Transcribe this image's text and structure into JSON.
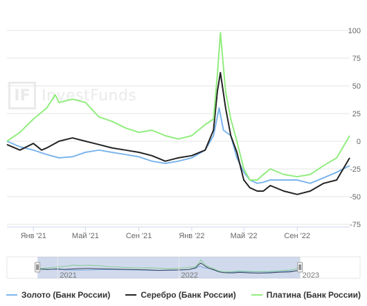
{
  "watermark": {
    "logo": "IF",
    "text": "InvestFunds"
  },
  "chart_data": {
    "type": "line",
    "title": "",
    "xlabel": "",
    "ylabel": "",
    "grid": true,
    "legend_position": "bottom",
    "ylim": [
      -75,
      100
    ],
    "yticks": [
      100,
      75,
      50,
      25,
      0,
      -25,
      -50,
      -75
    ],
    "ytick_labels": [
      "100",
      "75",
      "50",
      "25",
      "0",
      "-25",
      "-50",
      "-75"
    ],
    "x_range": [
      "2020-11-01",
      "2022-12-31"
    ],
    "xticks": [
      "2021-01-01",
      "2021-05-01",
      "2021-09-01",
      "2022-01-01",
      "2022-05-01",
      "2022-09-01"
    ],
    "xtick_labels": [
      "Янв '21",
      "Май '21",
      "Сен '21",
      "Янв '22",
      "Май '22",
      "Сен '22"
    ],
    "series": [
      {
        "name": "Золото (Банк России)",
        "color": "#7cb5ec",
        "x": [
          "2020-11-01",
          "2020-12-01",
          "2021-01-01",
          "2021-02-01",
          "2021-03-01",
          "2021-04-01",
          "2021-05-01",
          "2021-06-01",
          "2021-07-01",
          "2021-08-01",
          "2021-09-01",
          "2021-10-01",
          "2021-11-01",
          "2021-12-01",
          "2022-01-01",
          "2022-02-01",
          "2022-02-20",
          "2022-03-05",
          "2022-03-15",
          "2022-04-01",
          "2022-04-15",
          "2022-05-01",
          "2022-05-15",
          "2022-06-01",
          "2022-06-15",
          "2022-07-01",
          "2022-08-01",
          "2022-09-01",
          "2022-10-01",
          "2022-11-01",
          "2022-12-01",
          "2022-12-31"
        ],
        "y": [
          0,
          -5,
          -8,
          -12,
          -15,
          -14,
          -10,
          -8,
          -10,
          -12,
          -14,
          -18,
          -20,
          -18,
          -15,
          -8,
          5,
          30,
          10,
          5,
          -15,
          -28,
          -35,
          -38,
          -37,
          -35,
          -35,
          -35,
          -38,
          -33,
          -28,
          -22
        ]
      },
      {
        "name": "Серебро (Банк России)",
        "color": "#222222",
        "x": [
          "2020-11-01",
          "2020-12-01",
          "2021-01-01",
          "2021-01-20",
          "2021-02-01",
          "2021-03-01",
          "2021-04-01",
          "2021-05-01",
          "2021-06-01",
          "2021-07-01",
          "2021-08-01",
          "2021-09-01",
          "2021-10-01",
          "2021-11-01",
          "2021-12-01",
          "2022-01-01",
          "2022-02-01",
          "2022-02-20",
          "2022-03-01",
          "2022-03-08",
          "2022-03-20",
          "2022-04-01",
          "2022-04-15",
          "2022-05-01",
          "2022-05-15",
          "2022-06-01",
          "2022-06-15",
          "2022-07-01",
          "2022-08-01",
          "2022-09-01",
          "2022-10-01",
          "2022-11-01",
          "2022-12-01",
          "2022-12-31"
        ],
        "y": [
          -3,
          -8,
          -2,
          -8,
          -6,
          0,
          3,
          0,
          -3,
          -6,
          -8,
          -10,
          -13,
          -18,
          -15,
          -13,
          -8,
          10,
          45,
          62,
          30,
          5,
          -10,
          -35,
          -42,
          -45,
          -45,
          -40,
          -45,
          -48,
          -45,
          -38,
          -35,
          -15
        ]
      },
      {
        "name": "Платина (Банк России)",
        "color": "#90ed7d",
        "x": [
          "2020-11-01",
          "2020-12-01",
          "2021-01-01",
          "2021-02-01",
          "2021-02-20",
          "2021-03-01",
          "2021-04-01",
          "2021-05-01",
          "2021-06-01",
          "2021-07-01",
          "2021-08-01",
          "2021-09-01",
          "2021-10-01",
          "2021-11-01",
          "2021-12-01",
          "2022-01-01",
          "2022-02-01",
          "2022-02-20",
          "2022-03-01",
          "2022-03-08",
          "2022-03-20",
          "2022-04-01",
          "2022-04-15",
          "2022-05-01",
          "2022-05-15",
          "2022-06-01",
          "2022-06-15",
          "2022-07-01",
          "2022-08-01",
          "2022-09-01",
          "2022-10-01",
          "2022-11-01",
          "2022-12-01",
          "2022-12-31"
        ],
        "y": [
          0,
          8,
          20,
          30,
          42,
          35,
          38,
          35,
          22,
          18,
          12,
          8,
          10,
          5,
          2,
          5,
          15,
          20,
          60,
          98,
          45,
          20,
          0,
          -25,
          -35,
          -35,
          -30,
          -25,
          -30,
          -32,
          -30,
          -22,
          -15,
          5
        ]
      }
    ]
  },
  "navigator": {
    "labels": [
      "2021",
      "2022",
      "2023"
    ]
  }
}
